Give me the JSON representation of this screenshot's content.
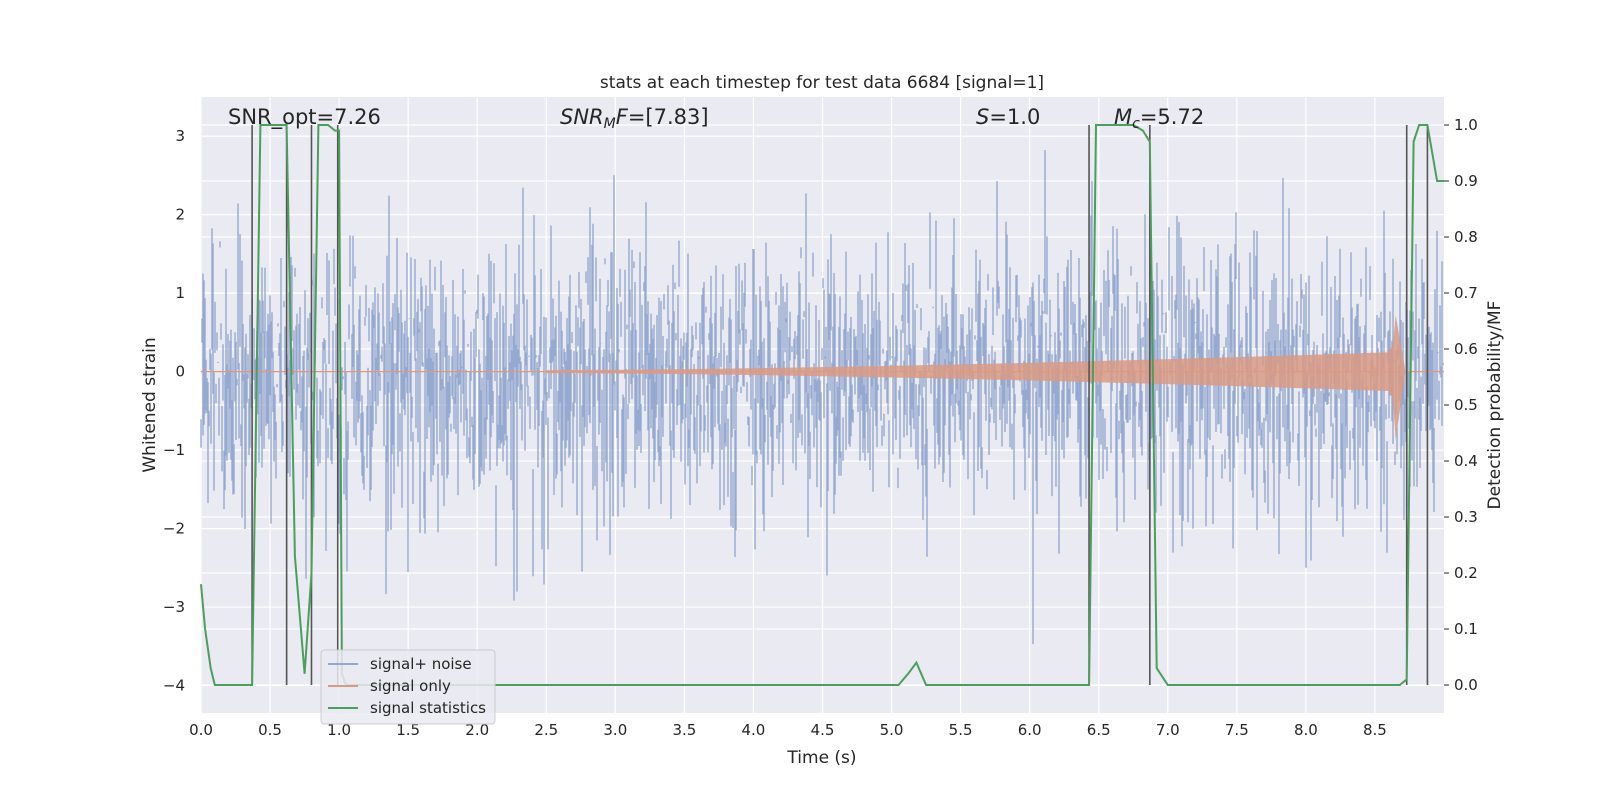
{
  "chart_data": {
    "type": "line",
    "title": "stats at each timestep for test data 6684 [signal=1]",
    "xlabel": "Time (s)",
    "ylabel_left": "Whitened strain",
    "ylabel_right": "Detection probability/MF",
    "xlim": [
      0,
      9.0
    ],
    "ylim_left": [
      -4.35,
      3.5
    ],
    "ylim_right": [
      -0.05,
      1.05
    ],
    "x_ticks": [
      "0.0",
      "0.5",
      "1.0",
      "1.5",
      "2.0",
      "2.5",
      "3.0",
      "3.5",
      "4.0",
      "4.5",
      "5.0",
      "5.5",
      "6.0",
      "6.5",
      "7.0",
      "7.5",
      "8.0",
      "8.5"
    ],
    "y_ticks_left": [
      "3",
      "2",
      "1",
      "0",
      "−1",
      "−2",
      "−3",
      "−4"
    ],
    "y_ticks_right": [
      "1.0",
      "0.9",
      "0.8",
      "0.7",
      "0.6",
      "0.5",
      "0.4",
      "0.3",
      "0.2",
      "0.1",
      "0.0"
    ],
    "grid": true,
    "legend_position": "lower-left",
    "annotations": {
      "snr_opt": "SNR_opt=7.26",
      "snr_mf_main": "SNR",
      "snr_mf_sub": "M",
      "snr_mf_italic": "F",
      "snr_mf_value": "=[7.83]",
      "s_italic": "S",
      "s_value": "=1.0",
      "mc_main": "M",
      "mc_sub": "c",
      "mc_value": "=5.72"
    },
    "series": [
      {
        "name": "signal+ noise",
        "color": "#91a7cf",
        "axis": "left",
        "description_envelope": "Gaussian-like whitened noise spanning roughly -4 to 3.2 across the full 0-9 s window"
      },
      {
        "name": "signal only",
        "color": "#d99a84",
        "axis": "left",
        "chirp": {
          "start": 2.5,
          "merger": 8.65,
          "end": 8.72,
          "amplitude_at_start": 0.02,
          "amplitude_before_merger": 0.25,
          "peak_amplitude": 0.72,
          "peak_min": -0.87
        }
      },
      {
        "name": "signal statistics",
        "color": "#4c9e5c",
        "axis": "right",
        "x": [
          0.0,
          0.03,
          0.07,
          0.1,
          0.2,
          0.3,
          0.37,
          0.43,
          0.5,
          0.55,
          0.6,
          0.62,
          0.68,
          0.75,
          0.8,
          0.85,
          0.88,
          0.92,
          0.97,
          1.0,
          1.02,
          1.05,
          1.15,
          4.95,
          5.05,
          5.12,
          5.18,
          5.25,
          6.43,
          6.48,
          6.65,
          6.75,
          6.82,
          6.87,
          6.92,
          7.0,
          8.68,
          8.73,
          8.78,
          8.82,
          8.88,
          8.95,
          9.0
        ],
        "y": [
          0.18,
          0.1,
          0.03,
          0.0,
          0.0,
          0.0,
          0.0,
          1.0,
          1.0,
          1.0,
          1.0,
          1.0,
          0.23,
          0.02,
          0.2,
          1.0,
          1.0,
          1.0,
          0.99,
          0.99,
          0.02,
          0.0,
          0.0,
          0.0,
          0.0,
          0.02,
          0.04,
          0.0,
          0.0,
          1.0,
          1.0,
          1.0,
          0.99,
          0.97,
          0.03,
          0.0,
          0.0,
          0.01,
          0.97,
          1.0,
          1.0,
          0.9,
          0.9
        ]
      }
    ],
    "vertical_lines": [
      0.37,
      0.62,
      0.8,
      0.99,
      6.43,
      6.87,
      8.73,
      8.88
    ]
  }
}
